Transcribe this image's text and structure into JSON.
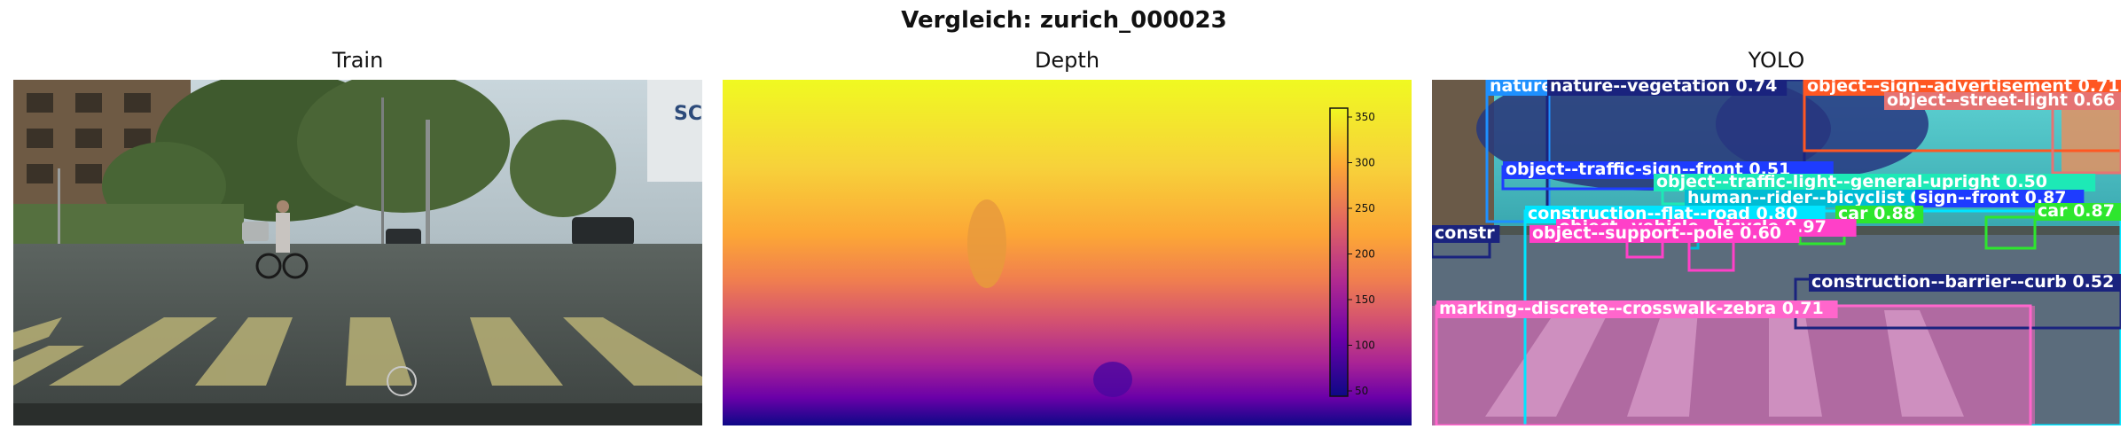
{
  "figure": {
    "title": "Vergleich: zurich_000023"
  },
  "panels": [
    {
      "title": "Train"
    },
    {
      "title": "Depth"
    },
    {
      "title": "YOLO"
    }
  ],
  "depth": {
    "colormap": "plasma",
    "colorbar_ticks": [
      "350",
      "300",
      "250",
      "200",
      "150",
      "100",
      "50"
    ]
  },
  "detections": [
    {
      "label": "nature",
      "color": "#1e90ff"
    },
    {
      "label": "nature--vegetation 0.74",
      "color": "#1a237e"
    },
    {
      "label": "object--sign--advertisement 0.71",
      "color": "#ff5722"
    },
    {
      "label": "object--street-light 0.66",
      "color": "#e57373"
    },
    {
      "label": "object--traffic-sign--front 0.51",
      "color": "#1e3cff"
    },
    {
      "label": "object--traffic-light--general-upright 0.50",
      "color": "#1de9b6"
    },
    {
      "label": "human--rider--bicyclist 0.90",
      "color": "#00bcd4"
    },
    {
      "label": "sign--front 0.87",
      "color": "#1e3cff"
    },
    {
      "label": "construction--flat--road 0.80",
      "color": "#00e5ff"
    },
    {
      "label": "car 0.88",
      "color": "#2ee62e"
    },
    {
      "label": "car 0.87",
      "color": "#2ee62e"
    },
    {
      "label": "object--vehicle--bicycle 0.97",
      "color": "#ff40c8"
    },
    {
      "label": "object--support--pole 0.60",
      "color": "#ff40c8"
    },
    {
      "label": "constr",
      "color": "#1a237e"
    },
    {
      "label": "construction--barrier--curb 0.52",
      "color": "#1a237e"
    },
    {
      "label": "marking--discrete--crosswalk-zebra 0.71",
      "color": "#ff66cc"
    }
  ]
}
